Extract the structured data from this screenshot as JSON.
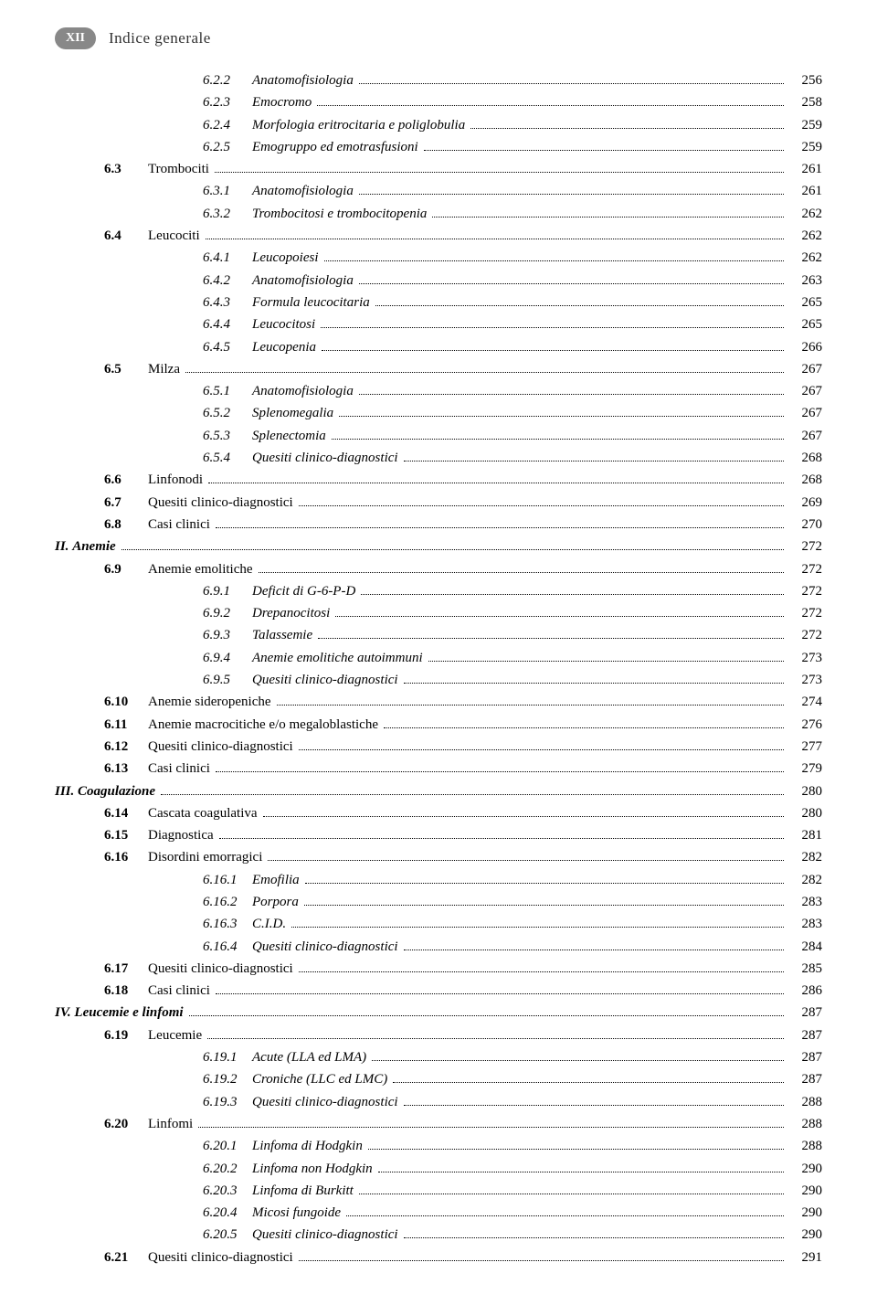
{
  "header": {
    "page_badge": "XII",
    "title": "Indice generale"
  },
  "entries": [
    {
      "indent": 3,
      "num": "6.2.2",
      "label": "Anatomofisiologia",
      "page": "256",
      "style": "italic",
      "numstyle": "sub"
    },
    {
      "indent": 3,
      "num": "6.2.3",
      "label": "Emocromo",
      "page": "258",
      "style": "italic",
      "numstyle": "sub"
    },
    {
      "indent": 3,
      "num": "6.2.4",
      "label": "Morfologia eritrocitaria e poliglobulia",
      "page": "259",
      "style": "italic",
      "numstyle": "sub"
    },
    {
      "indent": 3,
      "num": "6.2.5",
      "label": "Emogruppo ed emotrasfusioni",
      "page": "259",
      "style": "italic",
      "numstyle": "sub"
    },
    {
      "indent": 1,
      "num": "6.3",
      "label": "Trombociti",
      "page": "261",
      "style": "",
      "numstyle": "sec"
    },
    {
      "indent": 3,
      "num": "6.3.1",
      "label": "Anatomofisiologia",
      "page": "261",
      "style": "italic",
      "numstyle": "sub"
    },
    {
      "indent": 3,
      "num": "6.3.2",
      "label": "Trombocitosi e trombocitopenia",
      "page": "262",
      "style": "italic",
      "numstyle": "sub"
    },
    {
      "indent": 1,
      "num": "6.4",
      "label": "Leucociti",
      "page": "262",
      "style": "",
      "numstyle": "sec"
    },
    {
      "indent": 3,
      "num": "6.4.1",
      "label": "Leucopoiesi",
      "page": "262",
      "style": "italic",
      "numstyle": "sub"
    },
    {
      "indent": 3,
      "num": "6.4.2",
      "label": "Anatomofisiologia",
      "page": "263",
      "style": "italic",
      "numstyle": "sub"
    },
    {
      "indent": 3,
      "num": "6.4.3",
      "label": "Formula leucocitaria",
      "page": "265",
      "style": "italic",
      "numstyle": "sub"
    },
    {
      "indent": 3,
      "num": "6.4.4",
      "label": "Leucocitosi",
      "page": "265",
      "style": "italic",
      "numstyle": "sub"
    },
    {
      "indent": 3,
      "num": "6.4.5",
      "label": "Leucopenia",
      "page": "266",
      "style": "italic",
      "numstyle": "sub"
    },
    {
      "indent": 1,
      "num": "6.5",
      "label": "Milza",
      "page": "267",
      "style": "",
      "numstyle": "sec"
    },
    {
      "indent": 3,
      "num": "6.5.1",
      "label": "Anatomofisiologia",
      "page": "267",
      "style": "italic",
      "numstyle": "sub"
    },
    {
      "indent": 3,
      "num": "6.5.2",
      "label": "Splenomegalia",
      "page": "267",
      "style": "italic",
      "numstyle": "sub"
    },
    {
      "indent": 3,
      "num": "6.5.3",
      "label": "Splenectomia",
      "page": "267",
      "style": "italic",
      "numstyle": "sub"
    },
    {
      "indent": 3,
      "num": "6.5.4",
      "label": "Quesiti clinico-diagnostici",
      "page": "268",
      "style": "italic",
      "numstyle": "sub"
    },
    {
      "indent": 1,
      "num": "6.6",
      "label": "Linfonodi",
      "page": "268",
      "style": "",
      "numstyle": "sec"
    },
    {
      "indent": 1,
      "num": "6.7",
      "label": "Quesiti clinico-diagnostici",
      "page": "269",
      "style": "",
      "numstyle": "sec"
    },
    {
      "indent": 1,
      "num": "6.8",
      "label": "Casi clinici",
      "page": "270",
      "style": "",
      "numstyle": "sec"
    },
    {
      "indent": 0,
      "num": "II.",
      "label": "Anemie",
      "page": "272",
      "style": "bold italic",
      "numstyle": "part"
    },
    {
      "indent": 1,
      "num": "6.9",
      "label": "Anemie emolitiche",
      "page": "272",
      "style": "",
      "numstyle": "sec"
    },
    {
      "indent": 3,
      "num": "6.9.1",
      "label": "Deficit di G-6-P-D",
      "page": "272",
      "style": "italic",
      "numstyle": "sub"
    },
    {
      "indent": 3,
      "num": "6.9.2",
      "label": "Drepanocitosi",
      "page": "272",
      "style": "italic",
      "numstyle": "sub"
    },
    {
      "indent": 3,
      "num": "6.9.3",
      "label": "Talassemie",
      "page": "272",
      "style": "italic",
      "numstyle": "sub"
    },
    {
      "indent": 3,
      "num": "6.9.4",
      "label": "Anemie emolitiche autoimmuni",
      "page": "273",
      "style": "italic",
      "numstyle": "sub"
    },
    {
      "indent": 3,
      "num": "6.9.5",
      "label": "Quesiti clinico-diagnostici",
      "page": "273",
      "style": "italic",
      "numstyle": "sub"
    },
    {
      "indent": 1,
      "num": "6.10",
      "label": "Anemie sideropeniche",
      "page": "274",
      "style": "",
      "numstyle": "sec"
    },
    {
      "indent": 1,
      "num": "6.11",
      "label": "Anemie macrocitiche e/o megaloblastiche",
      "page": "276",
      "style": "",
      "numstyle": "sec"
    },
    {
      "indent": 1,
      "num": "6.12",
      "label": "Quesiti clinico-diagnostici",
      "page": "277",
      "style": "",
      "numstyle": "sec"
    },
    {
      "indent": 1,
      "num": "6.13",
      "label": "Casi clinici",
      "page": "279",
      "style": "",
      "numstyle": "sec"
    },
    {
      "indent": 0,
      "num": "III.",
      "label": "Coagulazione",
      "page": "280",
      "style": "bold italic",
      "numstyle": "part"
    },
    {
      "indent": 1,
      "num": "6.14",
      "label": "Cascata coagulativa",
      "page": "280",
      "style": "",
      "numstyle": "sec"
    },
    {
      "indent": 1,
      "num": "6.15",
      "label": "Diagnostica",
      "page": "281",
      "style": "",
      "numstyle": "sec"
    },
    {
      "indent": 1,
      "num": "6.16",
      "label": "Disordini emorragici",
      "page": "282",
      "style": "",
      "numstyle": "sec"
    },
    {
      "indent": 3,
      "num": "6.16.1",
      "label": "Emofilia",
      "page": "282",
      "style": "italic",
      "numstyle": "sub"
    },
    {
      "indent": 3,
      "num": "6.16.2",
      "label": "Porpora",
      "page": "283",
      "style": "italic",
      "numstyle": "sub"
    },
    {
      "indent": 3,
      "num": "6.16.3",
      "label": "C.I.D.",
      "page": "283",
      "style": "italic",
      "numstyle": "sub"
    },
    {
      "indent": 3,
      "num": "6.16.4",
      "label": "Quesiti clinico-diagnostici",
      "page": "284",
      "style": "italic",
      "numstyle": "sub"
    },
    {
      "indent": 1,
      "num": "6.17",
      "label": "Quesiti clinico-diagnostici",
      "page": "285",
      "style": "",
      "numstyle": "sec"
    },
    {
      "indent": 1,
      "num": "6.18",
      "label": "Casi clinici",
      "page": "286",
      "style": "",
      "numstyle": "sec"
    },
    {
      "indent": 0,
      "num": "IV.",
      "label": "Leucemie e linfomi",
      "page": "287",
      "style": "bold italic",
      "numstyle": "part"
    },
    {
      "indent": 1,
      "num": "6.19",
      "label": "Leucemie",
      "page": "287",
      "style": "",
      "numstyle": "sec"
    },
    {
      "indent": 3,
      "num": "6.19.1",
      "label": "Acute (LLA ed LMA)",
      "page": "287",
      "style": "italic",
      "numstyle": "sub"
    },
    {
      "indent": 3,
      "num": "6.19.2",
      "label": "Croniche (LLC ed LMC)",
      "page": "287",
      "style": "italic",
      "numstyle": "sub"
    },
    {
      "indent": 3,
      "num": "6.19.3",
      "label": "Quesiti clinico-diagnostici",
      "page": "288",
      "style": "italic",
      "numstyle": "sub"
    },
    {
      "indent": 1,
      "num": "6.20",
      "label": "Linfomi",
      "page": "288",
      "style": "",
      "numstyle": "sec"
    },
    {
      "indent": 3,
      "num": "6.20.1",
      "label": "Linfoma di Hodgkin",
      "page": "288",
      "style": "italic",
      "numstyle": "sub"
    },
    {
      "indent": 3,
      "num": "6.20.2",
      "label": "Linfoma non Hodgkin",
      "page": "290",
      "style": "italic",
      "numstyle": "sub"
    },
    {
      "indent": 3,
      "num": "6.20.3",
      "label": "Linfoma di Burkitt",
      "page": "290",
      "style": "italic",
      "numstyle": "sub"
    },
    {
      "indent": 3,
      "num": "6.20.4",
      "label": "Micosi fungoide",
      "page": "290",
      "style": "italic",
      "numstyle": "sub"
    },
    {
      "indent": 3,
      "num": "6.20.5",
      "label": "Quesiti clinico-diagnostici",
      "page": "290",
      "style": "italic",
      "numstyle": "sub"
    },
    {
      "indent": 1,
      "num": "6.21",
      "label": "Quesiti clinico-diagnostici",
      "page": "291",
      "style": "",
      "numstyle": "sec"
    }
  ]
}
